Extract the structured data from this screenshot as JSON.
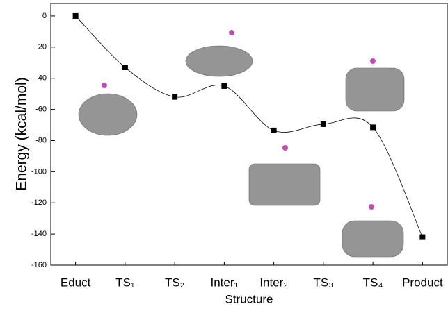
{
  "chart_data": {
    "type": "line",
    "x_label": "Structure",
    "y_label": "Energy (kcal/mol)",
    "categories": [
      "Educt",
      "TS₁",
      "TS₂",
      "Inter₁",
      "Inter₂",
      "TS₃",
      "TS₄",
      "Product"
    ],
    "series": [
      {
        "name": "Energy",
        "color": "#000000",
        "values": [
          0,
          -33,
          -52,
          -45,
          -73.5,
          -69.5,
          -71.5,
          -142
        ]
      }
    ],
    "ylim": [
      -160,
      8
    ],
    "yticks": [
      -160,
      -140,
      -120,
      -100,
      -80,
      -60,
      -40,
      -20,
      0
    ]
  }
}
